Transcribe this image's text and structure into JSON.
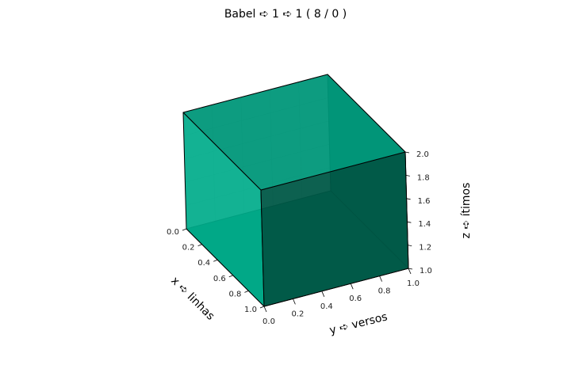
{
  "chart_data": {
    "type": "bar3d",
    "title": "Babel ➪ 1 ➪ 1 ( 8 / 0 )",
    "xlabel": "x ➪ linhas",
    "ylabel": "y ➪ versos",
    "zlabel": "z ➪ ítimos",
    "xlim": [
      0,
      1
    ],
    "ylim": [
      0,
      1
    ],
    "zlim": [
      1,
      2
    ],
    "xticks": [
      "0.0",
      "0.2",
      "0.4",
      "0.6",
      "0.8",
      "1.0"
    ],
    "yticks": [
      "0.0",
      "0.2",
      "0.4",
      "0.6",
      "0.8",
      "1.0"
    ],
    "zticks": [
      "1.0",
      "1.2",
      "1.4",
      "1.6",
      "1.8",
      "2.0"
    ],
    "grid": true,
    "bars": [
      {
        "x": 0,
        "y": 0,
        "z": 1,
        "dx": 1,
        "dy": 1,
        "dz": 1,
        "color": "#00b894"
      }
    ]
  }
}
